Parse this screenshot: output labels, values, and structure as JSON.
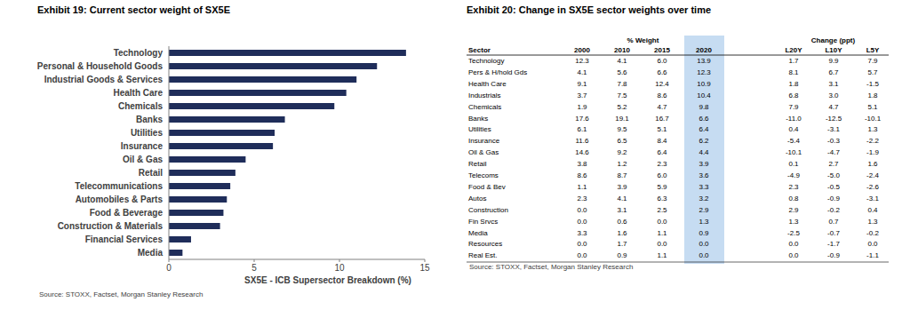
{
  "chart_data": {
    "type": "bar",
    "orientation": "horizontal",
    "title": "Exhibit 19:  Current sector weight of SX5E",
    "categories": [
      "Technology",
      "Personal & Household Goods",
      "Industrial Goods & Services",
      "Health Care",
      "Chemicals",
      "Banks",
      "Utilities",
      "Insurance",
      "Oil & Gas",
      "Retail",
      "Telecommunications",
      "Automobiles & Parts",
      "Food & Beverage",
      "Construction & Materials",
      "Financial Services",
      "Media"
    ],
    "values": [
      13.9,
      12.2,
      11.0,
      10.4,
      9.7,
      6.8,
      6.2,
      6.1,
      4.5,
      3.9,
      3.6,
      3.4,
      3.2,
      3.0,
      1.3,
      0.8
    ],
    "color": "#1f2d5a",
    "xlim": [
      0,
      15
    ],
    "xticks": [
      0,
      5,
      10,
      15
    ],
    "grid": false,
    "x_label": "SX5E - ICB Supersector Breakdown (%)",
    "source": "Source: STOXX, Factset, Morgan Stanley Research"
  },
  "table": {
    "title": "Exhibit 20:  Change in SX5E sector weights over time",
    "group_headers": [
      "% Weight",
      "Change (ppt)"
    ],
    "columns": [
      "Sector",
      "2000",
      "2010",
      "2015",
      "2020",
      "L20Y",
      "L10Y",
      "L5Y"
    ],
    "rows": [
      [
        "Technology",
        "12.3",
        "4.1",
        "6.0",
        "13.9",
        "1.7",
        "9.9",
        "7.9"
      ],
      [
        "Pers & H/hold Gds",
        "4.1",
        "5.6",
        "6.6",
        "12.3",
        "8.1",
        "6.7",
        "5.7"
      ],
      [
        "Health Care",
        "9.1",
        "7.8",
        "12.4",
        "10.9",
        "1.8",
        "3.1",
        "-1.5"
      ],
      [
        "Industrials",
        "3.7",
        "7.5",
        "8.6",
        "10.4",
        "6.8",
        "3.0",
        "1.8"
      ],
      [
        "Chemicals",
        "1.9",
        "5.2",
        "4.7",
        "9.8",
        "7.9",
        "4.7",
        "5.1"
      ],
      [
        "Banks",
        "17.6",
        "19.1",
        "16.7",
        "6.6",
        "-11.0",
        "-12.5",
        "-10.1"
      ],
      [
        "Utilities",
        "6.1",
        "9.5",
        "5.1",
        "6.4",
        "0.4",
        "-3.1",
        "1.3"
      ],
      [
        "Insurance",
        "11.6",
        "6.5",
        "8.4",
        "6.2",
        "-5.4",
        "-0.3",
        "-2.2"
      ],
      [
        "Oil & Gas",
        "14.6",
        "9.2",
        "6.4",
        "4.4",
        "-10.1",
        "-4.7",
        "-1.9"
      ],
      [
        "Retail",
        "3.8",
        "1.2",
        "2.3",
        "3.9",
        "0.1",
        "2.7",
        "1.6"
      ],
      [
        "Telecoms",
        "8.6",
        "8.7",
        "6.0",
        "3.6",
        "-4.9",
        "-5.0",
        "-2.4"
      ],
      [
        "Food & Bev",
        "1.1",
        "3.9",
        "5.9",
        "3.3",
        "2.3",
        "-0.5",
        "-2.6"
      ],
      [
        "Autos",
        "2.3",
        "4.1",
        "6.3",
        "3.2",
        "0.8",
        "-0.9",
        "-3.1"
      ],
      [
        "Construction",
        "0.0",
        "3.1",
        "2.5",
        "2.9",
        "2.9",
        "-0.2",
        "0.4"
      ],
      [
        "Fin Srvcs",
        "0.0",
        "0.6",
        "0.0",
        "1.3",
        "1.3",
        "0.7",
        "1.3"
      ],
      [
        "Media",
        "3.3",
        "1.6",
        "1.1",
        "0.9",
        "-2.5",
        "-0.7",
        "-0.2"
      ],
      [
        "Resources",
        "0.0",
        "1.7",
        "0.0",
        "0.0",
        "0.0",
        "-1.7",
        "0.0"
      ],
      [
        "Real Est.",
        "0.0",
        "0.9",
        "1.1",
        "0.0",
        "0.0",
        "-0.9",
        "-1.1"
      ]
    ],
    "source": "Source: STOXX, Factset, Morgan Stanley Research"
  }
}
